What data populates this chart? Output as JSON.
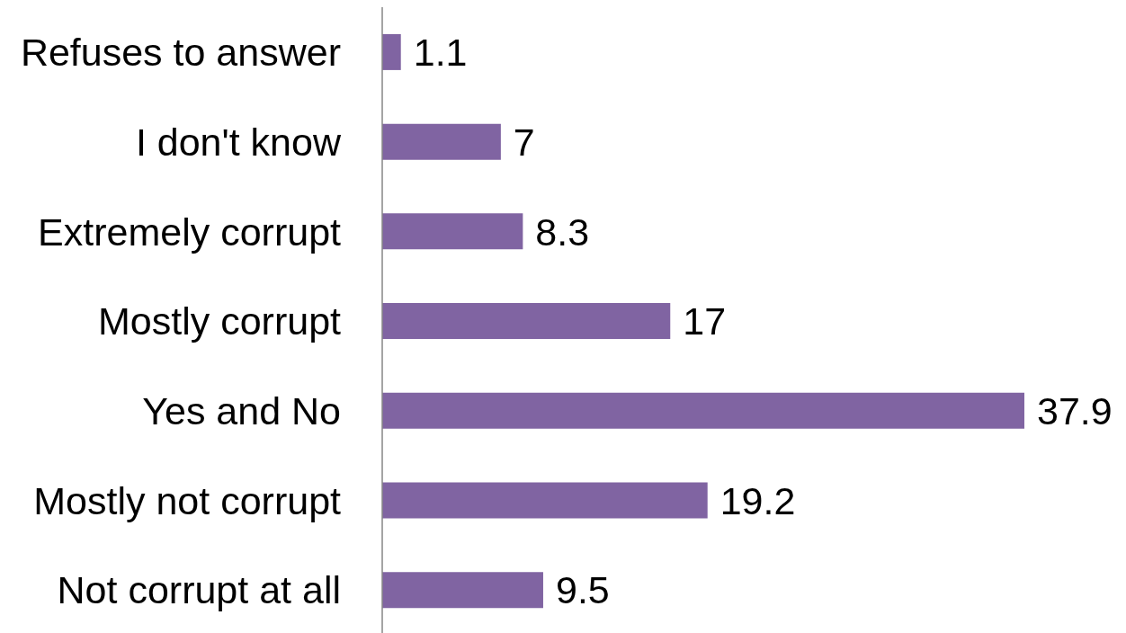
{
  "chart_data": {
    "type": "bar",
    "orientation": "horizontal",
    "categories": [
      "Refuses to answer",
      "I don't know",
      "Extremely corrupt",
      "Mostly corrupt",
      "Yes and No",
      "Mostly not corrupt",
      "Not corrupt at all"
    ],
    "values": [
      1.1,
      7,
      8.3,
      17,
      37.9,
      19.2,
      9.5
    ],
    "color": "#8064a2",
    "data_labels": true,
    "tick_labels": "y"
  }
}
